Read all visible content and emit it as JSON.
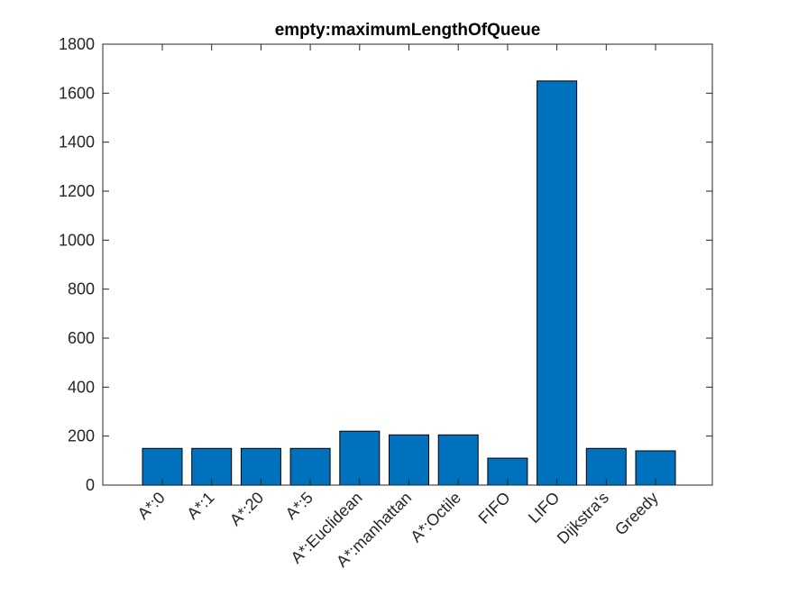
{
  "chart_data": {
    "type": "bar",
    "title": "empty:maximumLengthOfQueue",
    "xlabel": "",
    "ylabel": "",
    "categories": [
      "A*:0",
      "A*:1",
      "A*:20",
      "A*:5",
      "A*:Euclidean",
      "A*:manhattan",
      "A*:Octile",
      "FIFO",
      "LIFO",
      "Dijkstra's",
      "Greedy"
    ],
    "values": [
      150,
      150,
      150,
      150,
      220,
      205,
      205,
      110,
      1650,
      150,
      140
    ],
    "ylim": [
      0,
      1800
    ],
    "yticks": [
      0,
      200,
      400,
      600,
      800,
      1000,
      1200,
      1400,
      1600,
      1800
    ],
    "grid": false,
    "bar_color": "#0072BD"
  }
}
